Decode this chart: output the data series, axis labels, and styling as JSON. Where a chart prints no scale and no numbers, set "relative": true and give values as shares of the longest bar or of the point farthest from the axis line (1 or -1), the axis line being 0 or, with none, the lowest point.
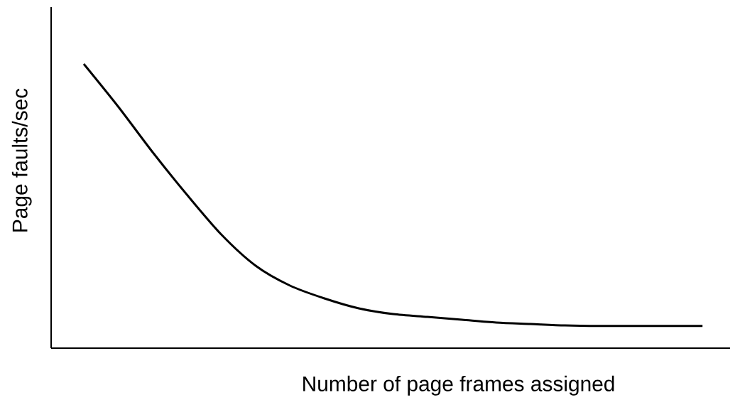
{
  "chart_data": {
    "type": "line",
    "relative": true,
    "xlabel": "Number of page frames assigned",
    "ylabel": "Page faults/sec",
    "color": "#000000",
    "categories": [
      null,
      null,
      null,
      null,
      null,
      null,
      null,
      null,
      null,
      null,
      null,
      null,
      null,
      null,
      null,
      null,
      null,
      null,
      null
    ],
    "values": [
      1.0,
      0.85,
      0.69,
      0.54,
      0.4,
      0.29,
      0.22,
      0.175,
      0.14,
      0.12,
      0.11,
      0.1,
      0.09,
      0.085,
      0.08,
      0.078,
      0.078,
      0.078,
      0.078
    ]
  }
}
